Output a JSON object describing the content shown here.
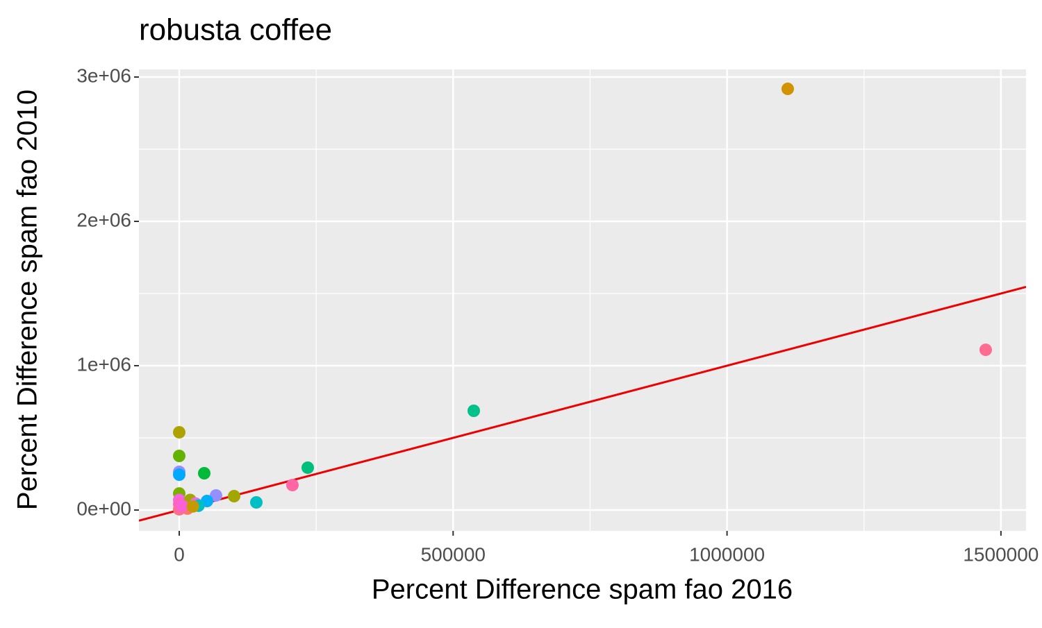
{
  "chart_data": {
    "type": "scatter",
    "title": "robusta coffee",
    "x_label": "Percent Difference spam fao 2016",
    "y_label": "Percent Difference spam fao 2010",
    "xlim": [
      -73550,
      1545800
    ],
    "ylim": [
      -144230,
      3052900
    ],
    "xticks": [
      0,
      500000,
      1000000,
      1500000
    ],
    "yticks": [
      {
        "value": 0,
        "label": "0e+00"
      },
      {
        "value": 1000000,
        "label": "1e+06"
      },
      {
        "value": 2000000,
        "label": "2e+06"
      },
      {
        "value": 3000000,
        "label": "3e+06"
      }
    ],
    "x_minor_ticks": [
      250000,
      750000,
      1250000
    ],
    "y_minor_ticks": [
      500000,
      1500000,
      2500000
    ],
    "grid": true,
    "x": [
      1110800,
      1472200,
      537660,
      234600,
      206700,
      140750,
      100180,
      67200,
      45650,
      0,
      0,
      0,
      0,
      0,
      50700,
      0,
      0,
      20000,
      30000,
      10000,
      0,
      15000,
      35000,
      5000,
      25000
    ],
    "y": [
      2918000,
      1110000,
      687500,
      293300,
      173000,
      52900,
      96150,
      101000,
      254800,
      538500,
      375000,
      265000,
      245000,
      115000,
      62500,
      70000,
      40000,
      70000,
      45000,
      20000,
      5000,
      10000,
      30000,
      30000,
      25000
    ],
    "colors": [
      "#d39200",
      "#ff6c91",
      "#00c08b",
      "#00bf7d",
      "#ff67a4",
      "#00bfc4",
      "#a3a500",
      "#9590ff",
      "#00ba38",
      "#aea200",
      "#64b200",
      "#9590ff",
      "#00a9ff",
      "#7cae00",
      "#00b0f6",
      "#f564e3",
      "#ff62bc",
      "#a3a500",
      "#e76bf3",
      "#f8766d",
      "#ff6c91",
      "#f8766d",
      "#00bfc4",
      "#fb61d7",
      "#c49a00"
    ],
    "reference_line": {
      "slope": 1,
      "intercept": 0,
      "color": "#ee0000"
    }
  }
}
